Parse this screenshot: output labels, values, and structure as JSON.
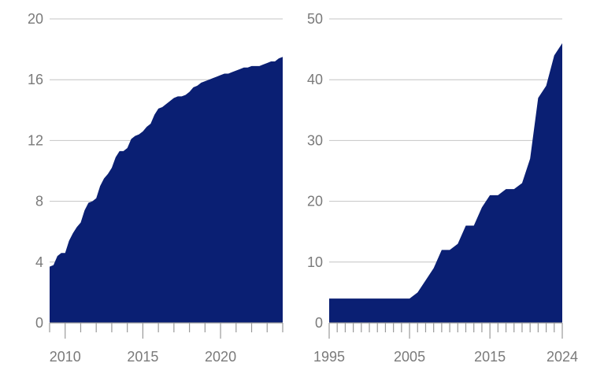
{
  "chart_data": [
    {
      "type": "area",
      "title": "",
      "xlabel": "",
      "ylabel": "",
      "xlim": [
        2009,
        2024.0
      ],
      "ylim": [
        0,
        20
      ],
      "yticks": [
        0,
        4,
        8,
        12,
        16,
        20
      ],
      "xticks": [
        2010,
        2015,
        2020
      ],
      "grid": true,
      "color": "#0a1f73",
      "series": [
        {
          "x": [
            2009.0,
            2009.25,
            2009.5,
            2009.75,
            2010.0,
            2010.25,
            2010.5,
            2010.75,
            2011.0,
            2011.25,
            2011.5,
            2011.75,
            2012.0,
            2012.25,
            2012.5,
            2012.75,
            2013.0,
            2013.25,
            2013.5,
            2013.75,
            2014.0,
            2014.25,
            2014.5,
            2014.75,
            2015.0,
            2015.25,
            2015.5,
            2015.75,
            2016.0,
            2016.25,
            2016.5,
            2016.75,
            2017.0,
            2017.25,
            2017.5,
            2017.75,
            2018.0,
            2018.25,
            2018.5,
            2018.75,
            2019.0,
            2019.25,
            2019.5,
            2019.75,
            2020.0,
            2020.25,
            2020.5,
            2020.75,
            2021.0,
            2021.25,
            2021.5,
            2021.75,
            2022.0,
            2022.25,
            2022.5,
            2022.75,
            2023.0,
            2023.25,
            2023.5,
            2023.75,
            2024.0
          ],
          "values": [
            3.7,
            3.8,
            4.4,
            4.6,
            4.6,
            5.4,
            5.9,
            6.3,
            6.6,
            7.4,
            7.9,
            8.0,
            8.2,
            9.0,
            9.5,
            9.8,
            10.2,
            10.9,
            11.3,
            11.3,
            11.5,
            12.1,
            12.3,
            12.4,
            12.6,
            12.9,
            13.1,
            13.7,
            14.1,
            14.2,
            14.4,
            14.6,
            14.8,
            14.9,
            14.9,
            15.0,
            15.2,
            15.5,
            15.6,
            15.8,
            15.9,
            16.0,
            16.1,
            16.2,
            16.3,
            16.4,
            16.4,
            16.5,
            16.6,
            16.7,
            16.8,
            16.8,
            16.9,
            16.9,
            16.9,
            17.0,
            17.1,
            17.2,
            17.2,
            17.4,
            17.5
          ]
        }
      ]
    },
    {
      "type": "area",
      "title": "",
      "xlabel": "",
      "ylabel": "",
      "xlim": [
        1995,
        2024
      ],
      "ylim": [
        0,
        50
      ],
      "yticks": [
        0,
        10,
        20,
        30,
        40,
        50
      ],
      "xticks": [
        1995,
        2005,
        2015,
        2024
      ],
      "grid": true,
      "color": "#0a1f73",
      "series": [
        {
          "x": [
            1995,
            1996,
            1997,
            1998,
            1999,
            2000,
            2001,
            2002,
            2003,
            2004,
            2005,
            2006,
            2007,
            2008,
            2009,
            2010,
            2011,
            2012,
            2013,
            2014,
            2015,
            2016,
            2017,
            2018,
            2019,
            2020,
            2021,
            2022,
            2023,
            2024
          ],
          "values": [
            4,
            4,
            4,
            4,
            4,
            4,
            4,
            4,
            4,
            4,
            4,
            5,
            7,
            9,
            12,
            12,
            13,
            16,
            16,
            19,
            21,
            21,
            22,
            22,
            23,
            27,
            37,
            39,
            44,
            46
          ]
        }
      ]
    }
  ]
}
